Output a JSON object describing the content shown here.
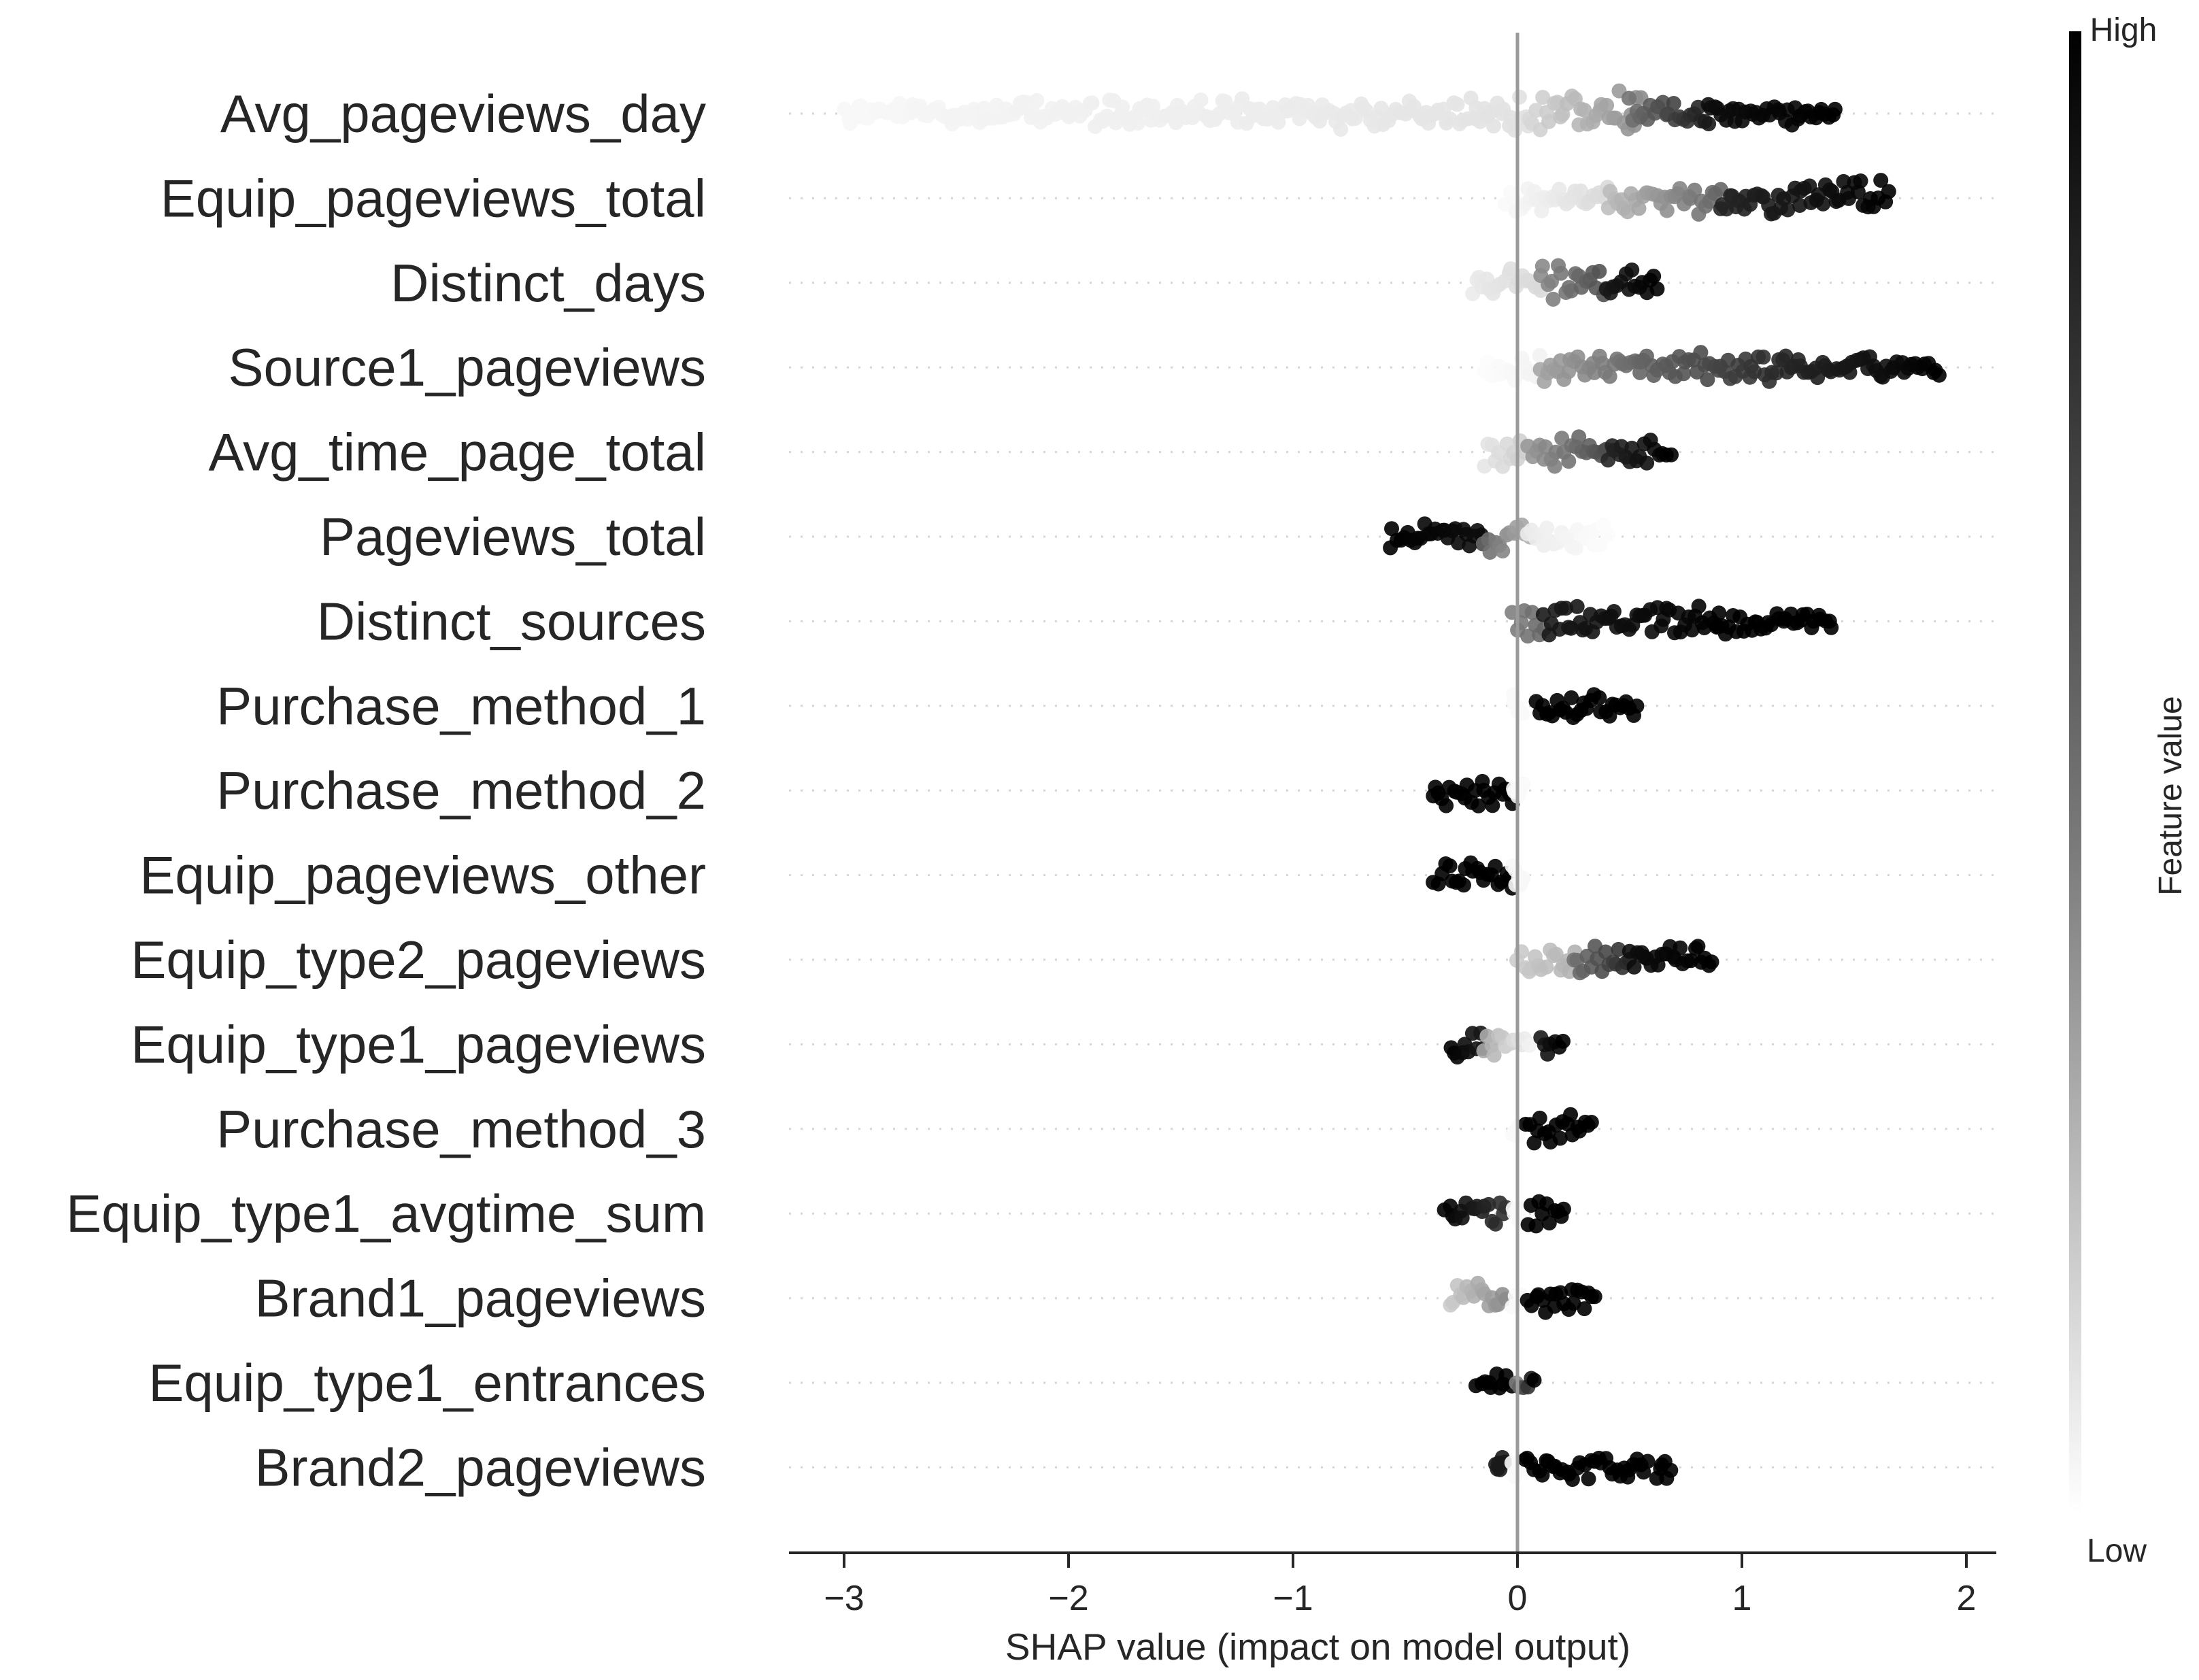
{
  "chart_data": {
    "type": "scatter",
    "subtype": "shap-beeswarm-summary",
    "xlabel": "SHAP value (impact on model output)",
    "xlim": [
      -3.3,
      2.15
    ],
    "xticks": [
      -3,
      -2,
      -1,
      0,
      1,
      2
    ],
    "xtick_labels": [
      "−3",
      "−2",
      "−1",
      "0",
      "1",
      "2"
    ],
    "colorbar": {
      "label": "Feature value",
      "high_label": "High",
      "low_label": "Low",
      "high_color": "#000000",
      "low_color": "#ffffff"
    },
    "features": [
      {
        "name": "Avg_pageviews_day",
        "segments": [
          {
            "x0": -3.0,
            "x1": -2.2,
            "v0": 0.03,
            "v1": 0.05,
            "w": 0.5
          },
          {
            "x0": -2.2,
            "x1": -0.9,
            "v0": 0.05,
            "v1": 0.08,
            "w": 0.6
          },
          {
            "x0": -0.9,
            "x1": 0.05,
            "v0": 0.08,
            "v1": 0.12,
            "w": 0.6
          },
          {
            "x0": 0.05,
            "x1": 0.55,
            "v0": 0.15,
            "v1": 0.45,
            "w": 1.0
          },
          {
            "x0": 0.5,
            "x1": 0.85,
            "v0": 0.55,
            "v1": 0.9,
            "w": 0.9
          },
          {
            "x0": 0.85,
            "x1": 1.42,
            "v0": 0.95,
            "v1": 1.0,
            "w": 0.4
          }
        ]
      },
      {
        "name": "Equip_pageviews_total",
        "segments": [
          {
            "x0": -0.05,
            "x1": 0.4,
            "v0": 0.02,
            "v1": 0.15,
            "w": 0.5
          },
          {
            "x0": 0.4,
            "x1": 0.9,
            "v0": 0.25,
            "v1": 0.6,
            "w": 0.8
          },
          {
            "x0": 0.9,
            "x1": 1.65,
            "v0": 0.85,
            "v1": 1.0,
            "w": 0.8
          }
        ]
      },
      {
        "name": "Distinct_days",
        "segments": [
          {
            "x0": -0.2,
            "x1": 0.1,
            "v0": 0.08,
            "v1": 0.15,
            "w": 0.5
          },
          {
            "x0": 0.1,
            "x1": 0.4,
            "v0": 0.45,
            "v1": 0.7,
            "w": 0.8
          },
          {
            "x0": 0.4,
            "x1": 0.62,
            "v0": 0.9,
            "v1": 1.0,
            "w": 0.5
          }
        ]
      },
      {
        "name": "Source1_pageviews",
        "segments": [
          {
            "x0": -0.15,
            "x1": 0.1,
            "v0": 0.01,
            "v1": 0.05,
            "w": 0.6
          },
          {
            "x0": 0.1,
            "x1": 0.55,
            "v0": 0.35,
            "v1": 0.6,
            "w": 0.6
          },
          {
            "x0": 0.55,
            "x1": 1.2,
            "v0": 0.6,
            "v1": 0.85,
            "w": 0.6
          },
          {
            "x0": 1.2,
            "x1": 1.88,
            "v0": 0.85,
            "v1": 1.0,
            "w": 0.3
          }
        ]
      },
      {
        "name": "Avg_time_page_total",
        "segments": [
          {
            "x0": -0.15,
            "x1": 0.05,
            "v0": 0.1,
            "v1": 0.2,
            "w": 0.6
          },
          {
            "x0": 0.05,
            "x1": 0.4,
            "v0": 0.4,
            "v1": 0.7,
            "w": 0.7
          },
          {
            "x0": 0.4,
            "x1": 0.68,
            "v0": 0.85,
            "v1": 1.0,
            "w": 0.5
          }
        ]
      },
      {
        "name": "Pageviews_total",
        "segments": [
          {
            "x0": -0.57,
            "x1": -0.15,
            "v0": 1.0,
            "v1": 0.95,
            "w": 0.6
          },
          {
            "x0": -0.15,
            "x1": 0.05,
            "v0": 0.6,
            "v1": 0.3,
            "w": 0.7
          },
          {
            "x0": 0.05,
            "x1": 0.4,
            "v0": 0.08,
            "v1": 0.01,
            "w": 0.4
          }
        ]
      },
      {
        "name": "Distinct_sources",
        "segments": [
          {
            "x0": -0.02,
            "x1": 0.12,
            "v0": 0.5,
            "v1": 0.6,
            "w": 0.9
          },
          {
            "x0": 0.12,
            "x1": 0.9,
            "v0": 0.9,
            "v1": 1.0,
            "w": 0.6
          },
          {
            "x0": 0.9,
            "x1": 1.4,
            "v0": 1.0,
            "v1": 1.0,
            "w": 0.4
          }
        ]
      },
      {
        "name": "Purchase_method_1",
        "segments": [
          {
            "x0": -0.02,
            "x1": 0.02,
            "v0": 0.02,
            "v1": 0.02,
            "w": 0.3
          },
          {
            "x0": 0.08,
            "x1": 0.53,
            "v0": 1.0,
            "v1": 1.0,
            "w": 0.6
          }
        ]
      },
      {
        "name": "Purchase_method_2",
        "segments": [
          {
            "x0": -0.38,
            "x1": -0.02,
            "v0": 1.0,
            "v1": 1.0,
            "w": 0.6
          },
          {
            "x0": -0.02,
            "x1": 0.02,
            "v0": 0.02,
            "v1": 0.02,
            "w": 0.3
          }
        ]
      },
      {
        "name": "Equip_pageviews_other",
        "segments": [
          {
            "x0": -0.37,
            "x1": -0.02,
            "v0": 1.0,
            "v1": 1.0,
            "w": 0.6
          },
          {
            "x0": -0.02,
            "x1": 0.02,
            "v0": 0.03,
            "v1": 0.03,
            "w": 0.3
          }
        ]
      },
      {
        "name": "Equip_type2_pageviews",
        "segments": [
          {
            "x0": 0.0,
            "x1": 0.25,
            "v0": 0.2,
            "v1": 0.3,
            "w": 0.6
          },
          {
            "x0": 0.25,
            "x1": 0.5,
            "v0": 0.55,
            "v1": 0.85,
            "w": 0.6
          },
          {
            "x0": 0.5,
            "x1": 0.87,
            "v0": 0.95,
            "v1": 1.0,
            "w": 0.6
          }
        ]
      },
      {
        "name": "Equip_type1_pageviews",
        "segments": [
          {
            "x0": -0.3,
            "x1": -0.15,
            "v0": 1.0,
            "v1": 0.9,
            "w": 0.6
          },
          {
            "x0": -0.15,
            "x1": 0.05,
            "v0": 0.35,
            "v1": 0.05,
            "w": 0.5
          },
          {
            "x0": 0.1,
            "x1": 0.2,
            "v0": 0.9,
            "v1": 1.0,
            "w": 0.5
          }
        ]
      },
      {
        "name": "Purchase_method_3",
        "segments": [
          {
            "x0": -0.02,
            "x1": 0.02,
            "v0": 0.02,
            "v1": 0.02,
            "w": 0.3
          },
          {
            "x0": 0.04,
            "x1": 0.33,
            "v0": 1.0,
            "v1": 1.0,
            "w": 0.6
          }
        ]
      },
      {
        "name": "Equip_type1_avgtime_sum",
        "segments": [
          {
            "x0": -0.32,
            "x1": -0.05,
            "v0": 1.0,
            "v1": 0.8,
            "w": 0.6
          },
          {
            "x0": -0.02,
            "x1": 0.02,
            "v0": 0.02,
            "v1": 0.02,
            "w": 0.3
          },
          {
            "x0": 0.05,
            "x1": 0.21,
            "v0": 1.0,
            "v1": 1.0,
            "w": 0.6
          }
        ]
      },
      {
        "name": "Brand1_pageviews",
        "segments": [
          {
            "x0": -0.3,
            "x1": -0.05,
            "v0": 0.2,
            "v1": 0.45,
            "w": 0.6
          },
          {
            "x0": -0.02,
            "x1": 0.02,
            "v0": 0.02,
            "v1": 0.02,
            "w": 0.3
          },
          {
            "x0": 0.05,
            "x1": 0.35,
            "v0": 1.0,
            "v1": 1.0,
            "w": 0.6
          }
        ]
      },
      {
        "name": "Equip_type1_entrances",
        "segments": [
          {
            "x0": -0.18,
            "x1": -0.03,
            "v0": 1.0,
            "v1": 1.0,
            "w": 0.6
          },
          {
            "x0": 0.0,
            "x1": 0.07,
            "v0": 0.5,
            "v1": 1.0,
            "w": 0.3
          }
        ]
      },
      {
        "name": "Brand2_pageviews",
        "segments": [
          {
            "x0": -0.1,
            "x1": -0.06,
            "v0": 0.9,
            "v1": 0.9,
            "w": 0.3
          },
          {
            "x0": -0.02,
            "x1": 0.02,
            "v0": 0.02,
            "v1": 0.02,
            "w": 0.3
          },
          {
            "x0": 0.03,
            "x1": 0.58,
            "v0": 1.0,
            "v1": 1.0,
            "w": 0.6
          },
          {
            "x0": 0.62,
            "x1": 0.68,
            "v0": 1.0,
            "v1": 1.0,
            "w": 0.3
          }
        ]
      }
    ]
  }
}
